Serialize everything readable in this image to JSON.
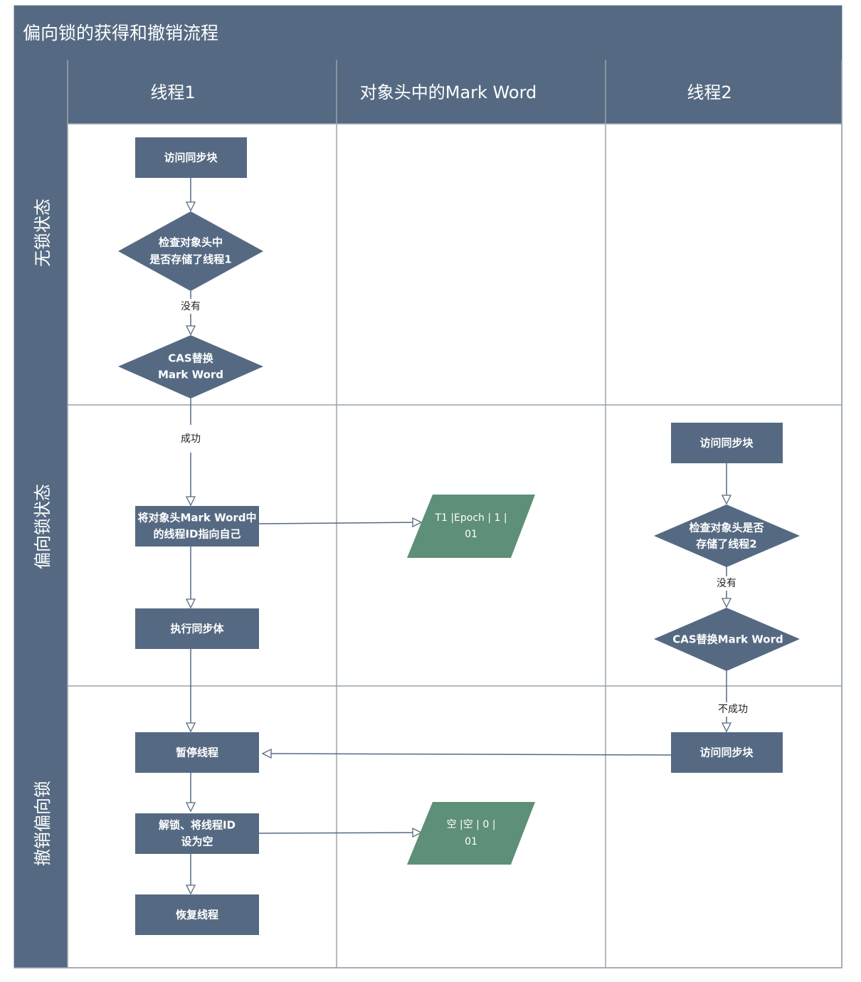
{
  "title": "偏向锁的获得和撤销流程",
  "lanes": [
    "线程1",
    "对象头中的Mark Word",
    "线程2"
  ],
  "phases": [
    "无锁状态",
    "偏向锁状态",
    "撤销偏向锁"
  ],
  "colors": {
    "header": "#556a82",
    "node": "#556a82",
    "data_node": "#5e8f78",
    "grid": "#9aa3ad",
    "arrow": "#556a82"
  },
  "nodes": {
    "t1_access": "访问同步块",
    "t1_check": [
      "检查对象头中",
      "是否存储了线程1"
    ],
    "t1_cas": [
      "CAS替换",
      "Mark Word"
    ],
    "t1_point": [
      "将对象头Mark Word中",
      "的线程ID指向自己"
    ],
    "t1_execute": "执行同步体",
    "t1_pause": "暂停线程",
    "t1_unlock": [
      "解锁、将线程ID",
      "设为空"
    ],
    "t1_resume": "恢复线程",
    "mw_biased": [
      "T1 |Epoch | 1 |",
      "01"
    ],
    "mw_empty": [
      "空 |空 | 0 |",
      "01"
    ],
    "t2_access": "访问同步块",
    "t2_check": [
      "检查对象头是否",
      "存储了线程2"
    ],
    "t2_cas": "CAS替换Mark Word",
    "t2_access2": "访问同步块"
  },
  "edge_labels": {
    "t1_no": "没有",
    "t1_success": "成功",
    "t2_no": "没有",
    "t2_fail": "不成功"
  }
}
